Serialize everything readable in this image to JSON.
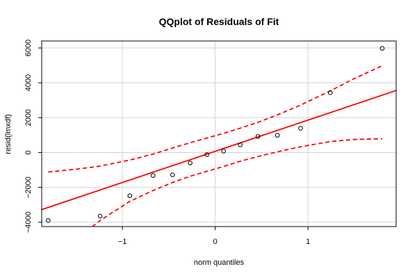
{
  "chart_data": {
    "type": "scatter",
    "title": "QQplot of Residuals of Fit",
    "xlabel": "norm quantiles",
    "ylabel": "resid(lmxdf)",
    "xlim": [
      -1.87,
      1.95
    ],
    "ylim": [
      -4250,
      6400
    ],
    "x_ticks": [
      -1,
      0,
      1
    ],
    "x_tick_labels": [
      "−1",
      "0",
      "1"
    ],
    "y_ticks": [
      -4000,
      -2000,
      0,
      2000,
      4000,
      6000
    ],
    "y_tick_labels": [
      "−4000",
      "−2000",
      "0",
      "2000",
      "4000",
      "6000"
    ],
    "grid": true,
    "points": [
      {
        "x": -1.8,
        "y": -3900
      },
      {
        "x": -1.24,
        "y": -3650
      },
      {
        "x": -0.92,
        "y": -2480
      },
      {
        "x": -0.67,
        "y": -1320
      },
      {
        "x": -0.46,
        "y": -1280
      },
      {
        "x": -0.27,
        "y": -600
      },
      {
        "x": -0.09,
        "y": -120
      },
      {
        "x": 0.09,
        "y": 80
      },
      {
        "x": 0.27,
        "y": 440
      },
      {
        "x": 0.46,
        "y": 920
      },
      {
        "x": 0.67,
        "y": 990
      },
      {
        "x": 0.92,
        "y": 1390
      },
      {
        "x": 1.24,
        "y": 3430
      },
      {
        "x": 1.8,
        "y": 5980
      }
    ],
    "fit_line": {
      "intercept": 70,
      "slope": 1790,
      "color": "#ff0000"
    },
    "confidence_band": {
      "color": "#ff0000",
      "upper": [
        {
          "x": -1.8,
          "y": -1120
        },
        {
          "x": -1.5,
          "y": -960
        },
        {
          "x": -1.24,
          "y": -780
        },
        {
          "x": -0.92,
          "y": -430
        },
        {
          "x": -0.67,
          "y": -90
        },
        {
          "x": -0.46,
          "y": 260
        },
        {
          "x": -0.27,
          "y": 560
        },
        {
          "x": -0.09,
          "y": 830
        },
        {
          "x": 0.09,
          "y": 1100
        },
        {
          "x": 0.27,
          "y": 1400
        },
        {
          "x": 0.46,
          "y": 1730
        },
        {
          "x": 0.67,
          "y": 2160
        },
        {
          "x": 0.92,
          "y": 2720
        },
        {
          "x": 1.24,
          "y": 3540
        },
        {
          "x": 1.5,
          "y": 4250
        },
        {
          "x": 1.8,
          "y": 4980
        }
      ],
      "lower": [
        {
          "x": -1.8,
          "y": -6200
        },
        {
          "x": -1.5,
          "y": -5000
        },
        {
          "x": -1.24,
          "y": -3900
        },
        {
          "x": -0.92,
          "y": -2800
        },
        {
          "x": -0.67,
          "y": -2180
        },
        {
          "x": -0.46,
          "y": -1720
        },
        {
          "x": -0.27,
          "y": -1360
        },
        {
          "x": -0.09,
          "y": -1080
        },
        {
          "x": 0.09,
          "y": -800
        },
        {
          "x": 0.27,
          "y": -500
        },
        {
          "x": 0.46,
          "y": -230
        },
        {
          "x": 0.67,
          "y": 40
        },
        {
          "x": 0.92,
          "y": 330
        },
        {
          "x": 1.24,
          "y": 630
        },
        {
          "x": 1.5,
          "y": 750
        },
        {
          "x": 1.8,
          "y": 790
        }
      ]
    },
    "colors": {
      "points": "#000000",
      "grid": "#d3d3d3",
      "frame": "#000000"
    }
  }
}
